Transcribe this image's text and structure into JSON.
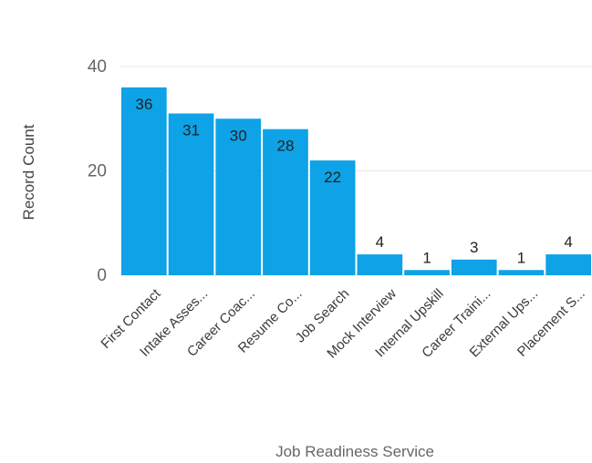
{
  "chart_data": {
    "type": "bar",
    "title": "",
    "xlabel": "Job Readiness Service",
    "ylabel": "Record Count",
    "ylim": [
      0,
      40
    ],
    "yticks": [
      0,
      20,
      40
    ],
    "grid": true,
    "bar_color": "#0ea2e6",
    "categories": [
      "First Contact",
      "Intake Asses...",
      "Career Coac...",
      "Resume Co...",
      "Job Search",
      "Mock Interview",
      "Internal Upskill",
      "Career Traini...",
      "External Ups...",
      "Placement S..."
    ],
    "values": [
      36,
      31,
      30,
      28,
      22,
      4,
      1,
      3,
      1,
      4
    ]
  }
}
